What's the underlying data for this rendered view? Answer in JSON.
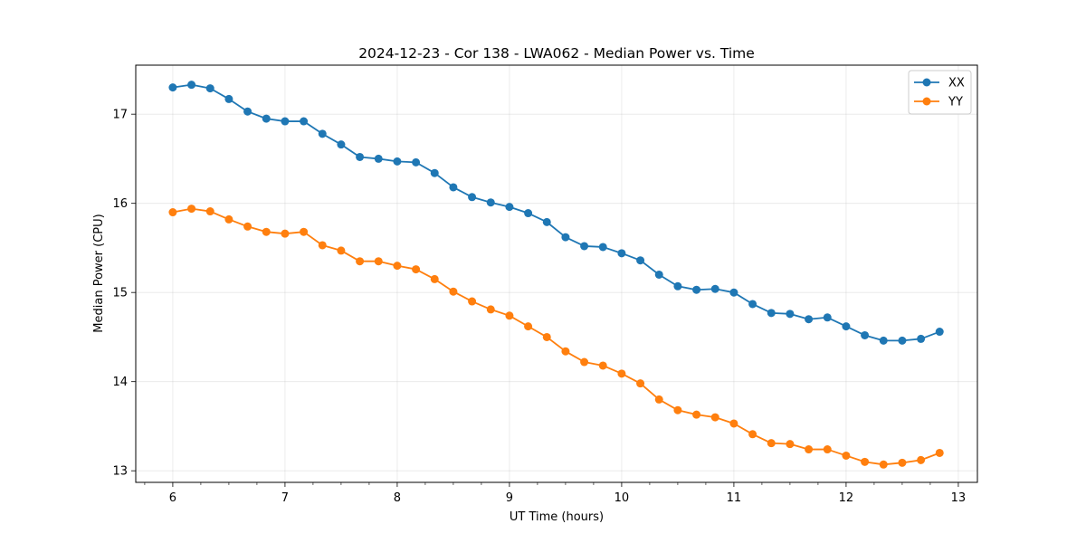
{
  "chart_data": {
    "type": "line",
    "title": "2024-12-23 - Cor 138 - LWA062 - Median Power vs. Time",
    "xlabel": "UT Time (hours)",
    "ylabel": "Median Power (CPU)",
    "xlim": [
      5.67,
      13.17
    ],
    "ylim": [
      12.87,
      17.55
    ],
    "xticks": [
      6,
      7,
      8,
      9,
      10,
      11,
      12,
      13
    ],
    "yticks": [
      13,
      14,
      15,
      16,
      17
    ],
    "grid": true,
    "legend_position": "top-right",
    "x": [
      6.0,
      6.1667,
      6.3333,
      6.5,
      6.6667,
      6.8333,
      7.0,
      7.1667,
      7.3333,
      7.5,
      7.6667,
      7.8333,
      8.0,
      8.1667,
      8.3333,
      8.5,
      8.6667,
      8.8333,
      9.0,
      9.1667,
      9.3333,
      9.5,
      9.6667,
      9.8333,
      10.0,
      10.1667,
      10.3333,
      10.5,
      10.6667,
      10.8333,
      11.0,
      11.1667,
      11.3333,
      11.5,
      11.6667,
      11.8333,
      12.0,
      12.1667,
      12.3333,
      12.5,
      12.6667,
      12.8333
    ],
    "series": [
      {
        "name": "XX",
        "color": "#1f77b4",
        "values": [
          17.3,
          17.33,
          17.29,
          17.17,
          17.03,
          16.95,
          16.92,
          16.92,
          16.78,
          16.66,
          16.52,
          16.5,
          16.47,
          16.46,
          16.34,
          16.18,
          16.07,
          16.01,
          15.96,
          15.89,
          15.79,
          15.62,
          15.52,
          15.51,
          15.44,
          15.36,
          15.2,
          15.07,
          15.03,
          15.04,
          15.0,
          14.87,
          14.77,
          14.76,
          14.7,
          14.72,
          14.62,
          14.52,
          14.46,
          14.46,
          14.48,
          14.56
        ]
      },
      {
        "name": "YY",
        "color": "#ff7f0e",
        "values": [
          15.9,
          15.94,
          15.91,
          15.82,
          15.74,
          15.68,
          15.66,
          15.68,
          15.53,
          15.47,
          15.35,
          15.35,
          15.3,
          15.26,
          15.15,
          15.01,
          14.9,
          14.81,
          14.74,
          14.62,
          14.5,
          14.34,
          14.22,
          14.18,
          14.09,
          13.98,
          13.8,
          13.68,
          13.63,
          13.6,
          13.53,
          13.41,
          13.31,
          13.3,
          13.24,
          13.24,
          13.17,
          13.1,
          13.07,
          13.09,
          13.12,
          13.2
        ]
      }
    ]
  }
}
